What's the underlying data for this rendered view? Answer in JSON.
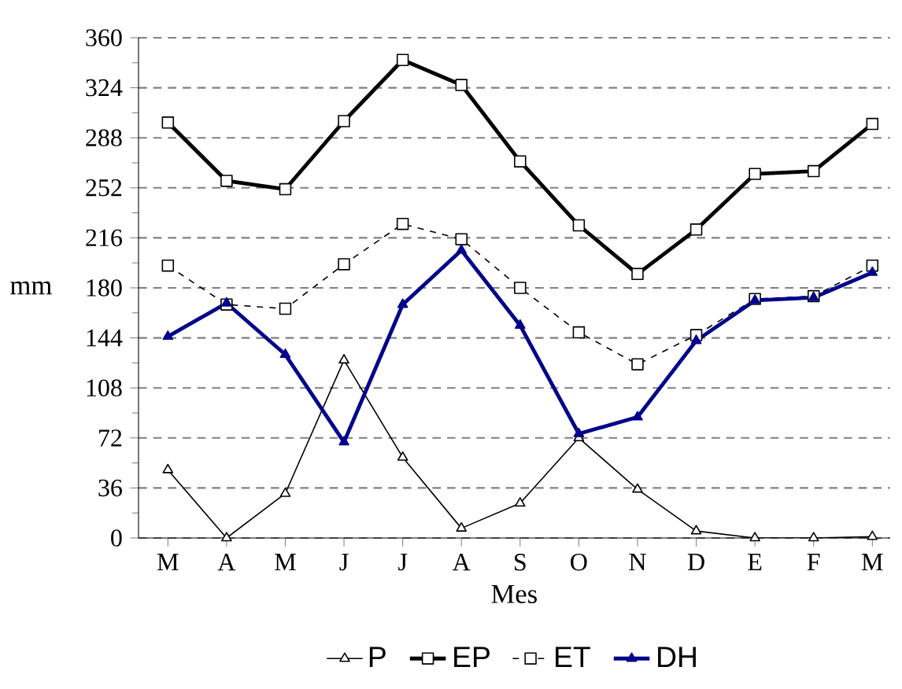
{
  "chart_data": {
    "type": "line",
    "xlabel": "Mes",
    "ylabel": "mm",
    "categories": [
      "M",
      "A",
      "M",
      "J",
      "J",
      "A",
      "S",
      "O",
      "N",
      "D",
      "E",
      "F",
      "M"
    ],
    "series": [
      {
        "name": "P",
        "color": "#000000",
        "marker": "triangle",
        "values": [
          49,
          0,
          32,
          128,
          58,
          7,
          25,
          72,
          35,
          5,
          0,
          0,
          1
        ]
      },
      {
        "name": "EP",
        "color": "#000000",
        "marker": "square",
        "values": [
          299,
          257,
          251,
          300,
          344,
          326,
          271,
          225,
          190,
          222,
          262,
          264,
          298
        ]
      },
      {
        "name": "ET",
        "color": "#000000",
        "marker": "square",
        "line_style": "dashed",
        "values": [
          196,
          168,
          165,
          197,
          226,
          215,
          180,
          148,
          125,
          146,
          172,
          174,
          196
        ]
      },
      {
        "name": "DH",
        "color": "#00008b",
        "marker": "triangle",
        "values": [
          145,
          169,
          132,
          69,
          168,
          207,
          153,
          75,
          87,
          142,
          171,
          173,
          191
        ]
      }
    ],
    "ylim": [
      0,
      360
    ],
    "yticks": [
      0,
      36,
      72,
      108,
      144,
      180,
      216,
      252,
      288,
      324,
      360
    ],
    "grid": "y",
    "legend": "bottom"
  }
}
